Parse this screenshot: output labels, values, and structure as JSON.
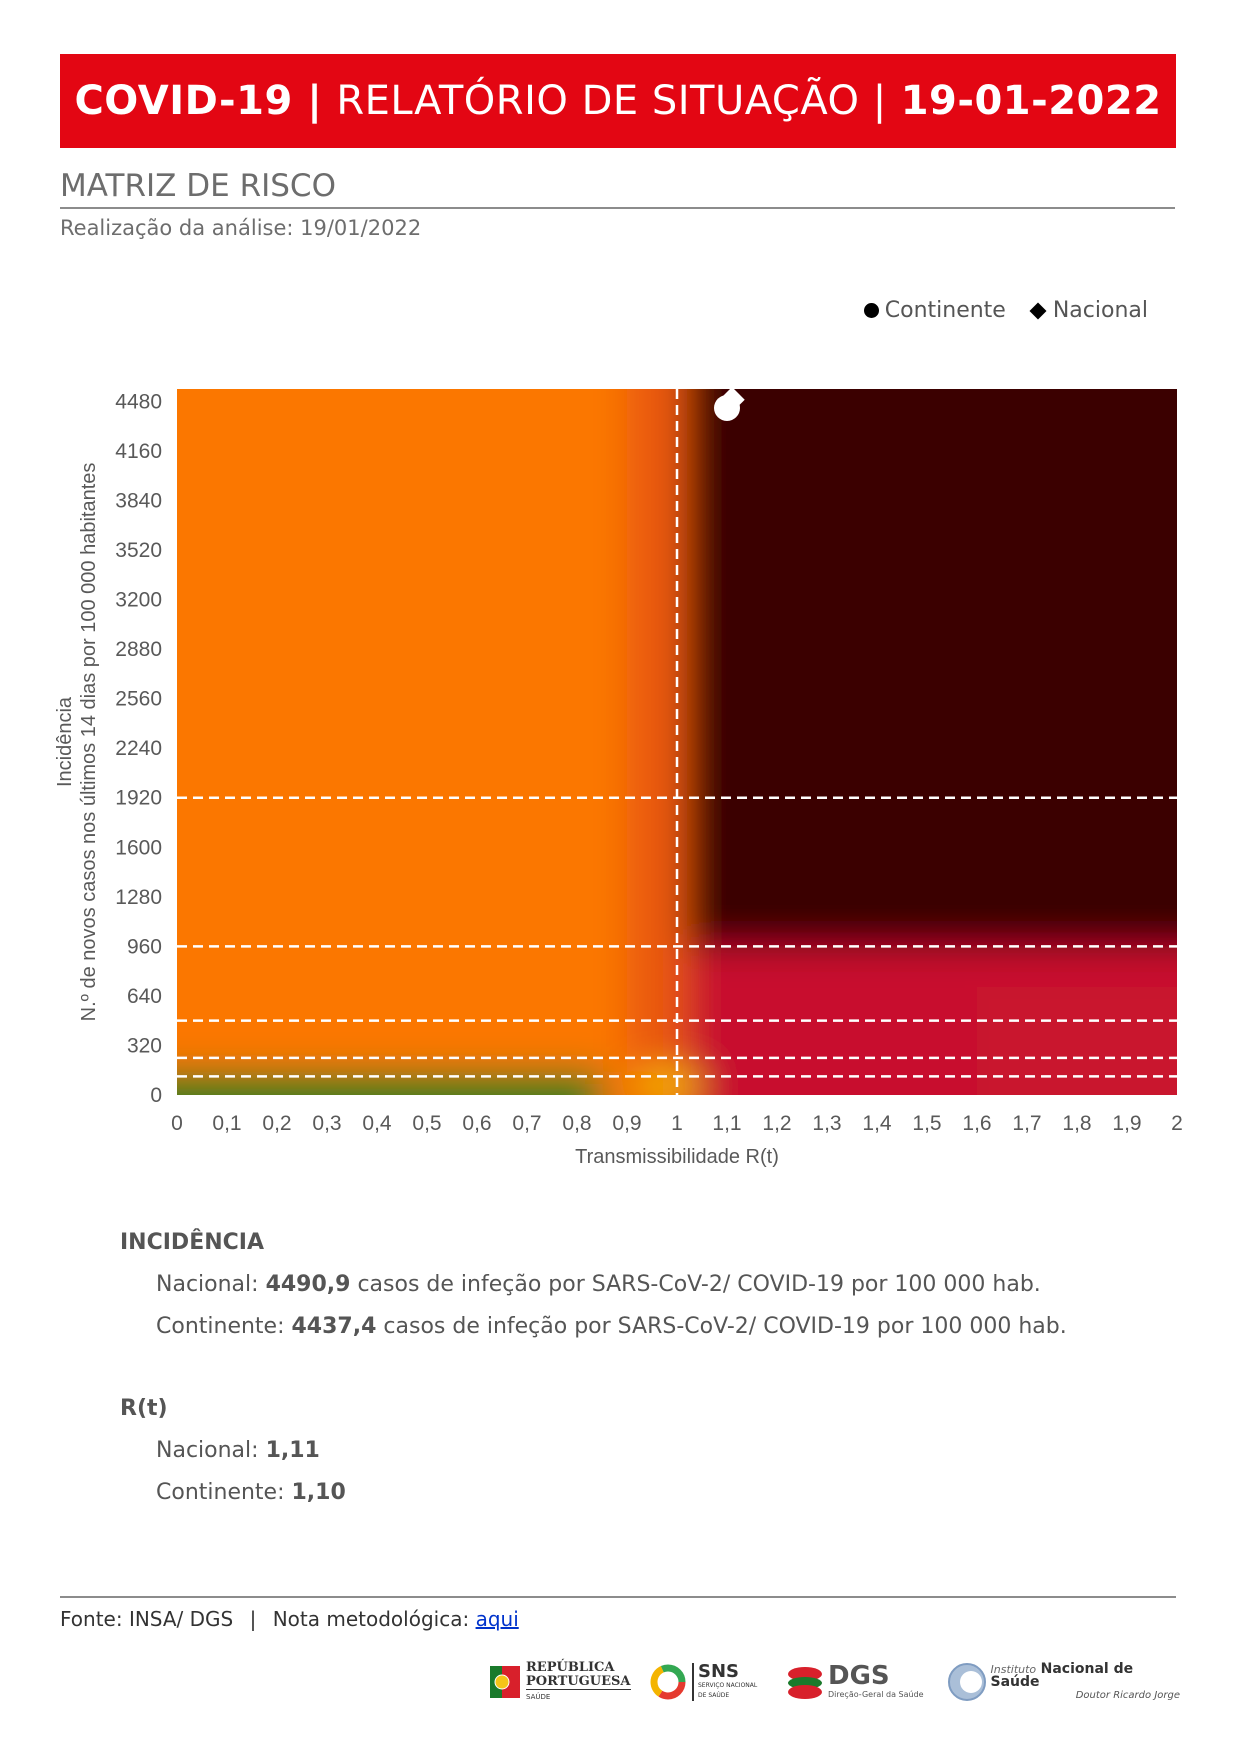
{
  "banner": {
    "part1": "COVID-19 |",
    "part2": "RELATÓRIO DE SITUAÇÃO |",
    "part3": "19-01-2022"
  },
  "section": {
    "title": "MATRIZ DE RISCO",
    "subtitle": "Realização da análise: 19/01/2022"
  },
  "legend": {
    "continente": "Continente",
    "nacional": "Nacional"
  },
  "chart_data": {
    "type": "heatmap",
    "xlabel": "Transmissibilidade R(t)",
    "ylabel_line1": "Incidência",
    "ylabel_line2": "N.º de novos casos nos últimos 14 dias por 100 000 habitantes",
    "xlim": [
      0,
      2
    ],
    "ylim": [
      0,
      4560
    ],
    "x_ticks": [
      "0",
      "0,1",
      "0,2",
      "0,3",
      "0,4",
      "0,5",
      "0,6",
      "0,7",
      "0,8",
      "0,9",
      "1",
      "1,1",
      "1,2",
      "1,3",
      "1,4",
      "1,5",
      "1,6",
      "1,7",
      "1,8",
      "1,9",
      "2"
    ],
    "y_ticks": [
      "0",
      "320",
      "640",
      "960",
      "1280",
      "1600",
      "1920",
      "2240",
      "2560",
      "2880",
      "3200",
      "3520",
      "3840",
      "4160",
      "4480"
    ],
    "y_tick_values": [
      0,
      320,
      640,
      960,
      1280,
      1600,
      1920,
      2240,
      2560,
      2880,
      3200,
      3520,
      3840,
      4160,
      4480
    ],
    "reference_lines": {
      "x": [
        1
      ],
      "y": [
        120,
        240,
        480,
        960,
        1920
      ]
    },
    "series": [
      {
        "name": "Continente",
        "marker": "circle",
        "x": 1.1,
        "y": 4437.4
      },
      {
        "name": "Nacional",
        "marker": "diamond",
        "x": 1.11,
        "y": 4490.9
      }
    ],
    "colors": {
      "low": "#2e7d1e",
      "mid": "#fb7705",
      "high": "#c8102e",
      "very_high": "#3a0005"
    }
  },
  "incidencia": {
    "heading": "INCIDÊNCIA",
    "nacional_label": "Nacional: ",
    "nacional_value": "4490,9",
    "nacional_text": " casos de infeção por SARS-CoV-2/ COVID-19 por 100 000 hab.",
    "continente_label": "Continente: ",
    "continente_value": "4437,4",
    "continente_text": " casos de infeção por SARS-CoV-2/ COVID-19 por 100 000 hab."
  },
  "rt": {
    "heading": "R(t)",
    "nacional_label": "Nacional: ",
    "nacional_value": "1,11",
    "continente_label": "Continente: ",
    "continente_value": "1,10"
  },
  "footer": {
    "fonte": "Fonte: INSA/ DGS",
    "sep": "|",
    "nota_label": "Nota metodológica: ",
    "link": "aqui"
  },
  "logos": {
    "rp1": "REPÚBLICA",
    "rp2": "PORTUGUESA",
    "rp3": "SAÚDE",
    "sns": "SNS",
    "sns_sub1": "SERVIÇO NACIONAL",
    "sns_sub2": "DE SAÚDE",
    "dgs": "DGS",
    "dgs_sub": "Direção-Geral da Saúde",
    "insa1": "Instituto",
    "insa2": "Nacional de Saúde",
    "insa3": "Doutor Ricardo Jorge"
  }
}
